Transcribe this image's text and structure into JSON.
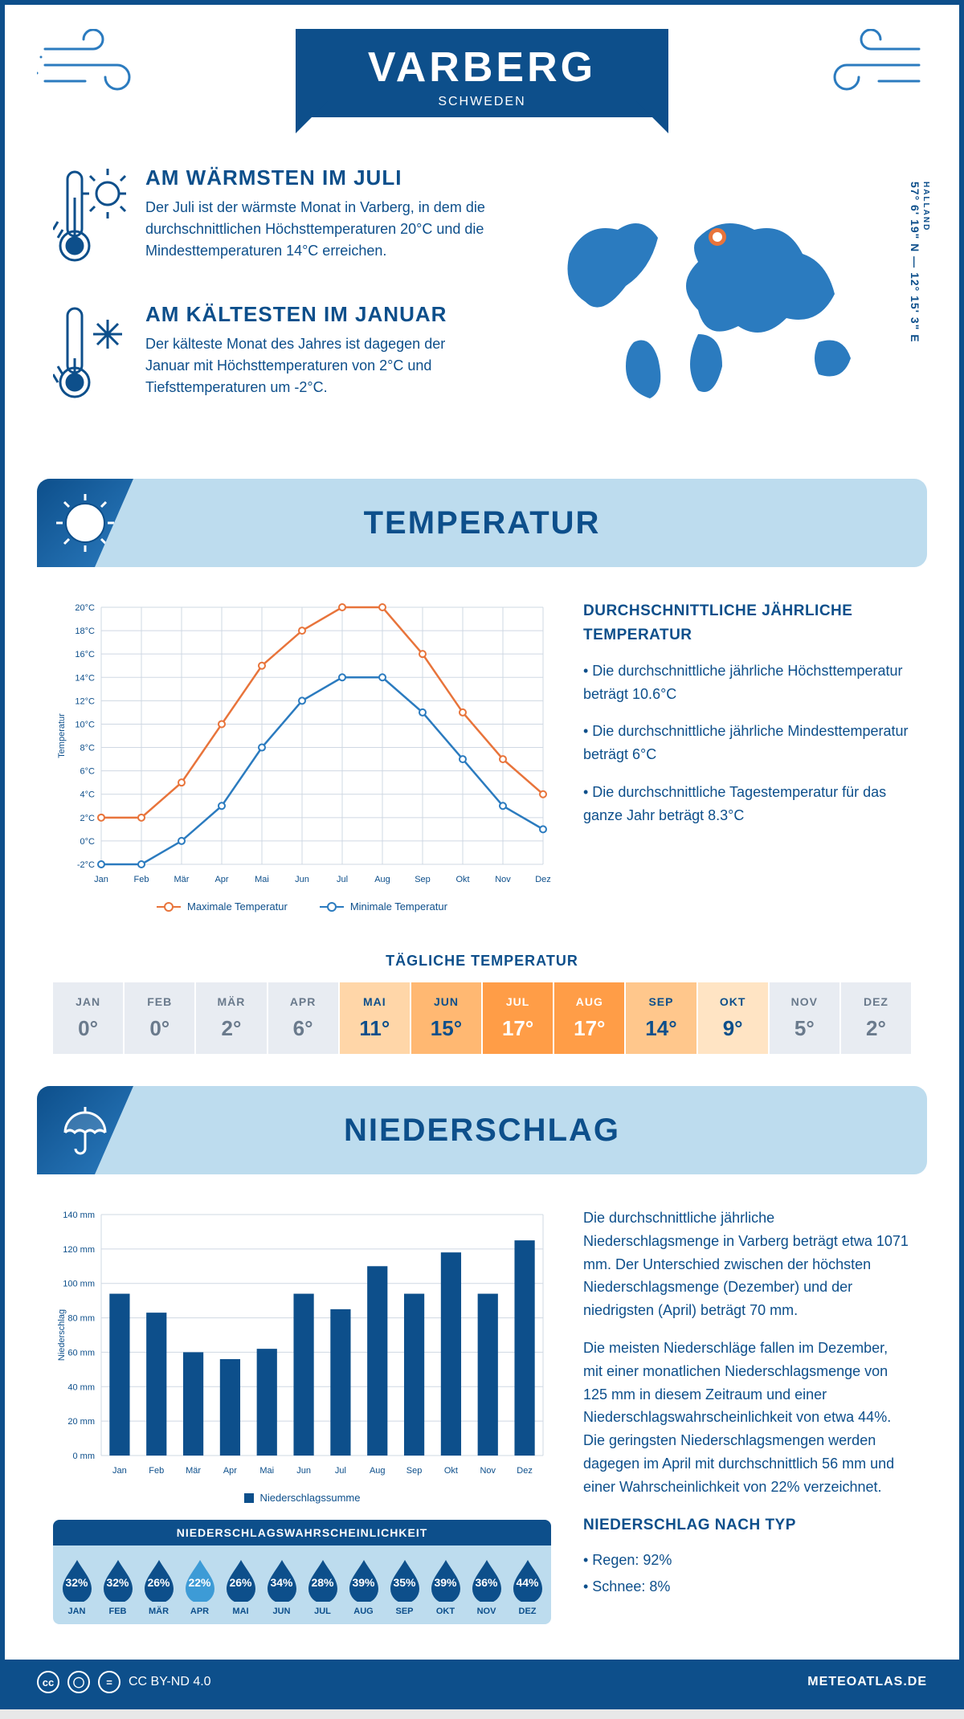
{
  "colors": {
    "blue": "#0d4f8b",
    "blue2": "#2b7bbf",
    "lightblue": "#bddcee",
    "orange": "#e8743b",
    "grid": "#cfd8e3"
  },
  "header": {
    "title": "VARBERG",
    "subtitle": "SCHWEDEN"
  },
  "coords": {
    "region": "HALLAND",
    "lat": "57° 6' 19\" N",
    "lon": "12° 15' 3\" E"
  },
  "warm": {
    "title": "AM WÄRMSTEN IM JULI",
    "text": "Der Juli ist der wärmste Monat in Varberg, in dem die durchschnittlichen Höchsttemperaturen 20°C und die Mindesttemperaturen 14°C erreichen."
  },
  "cold": {
    "title": "AM KÄLTESTEN IM JANUAR",
    "text": "Der kälteste Monat des Jahres ist dagegen der Januar mit Höchsttemperaturen von 2°C und Tiefsttemperaturen um -2°C."
  },
  "temp_section": {
    "title": "TEMPERATUR"
  },
  "temp_chart": {
    "type": "line",
    "months": [
      "Jan",
      "Feb",
      "Mär",
      "Apr",
      "Mai",
      "Jun",
      "Jul",
      "Aug",
      "Sep",
      "Okt",
      "Nov",
      "Dez"
    ],
    "max": [
      2,
      2,
      5,
      10,
      15,
      18,
      20,
      20,
      16,
      11,
      7,
      4
    ],
    "min": [
      -2,
      -2,
      0,
      3,
      8,
      12,
      14,
      14,
      11,
      7,
      3,
      1
    ],
    "ylim": [
      -2,
      20
    ],
    "ytick_step": 2,
    "max_color": "#e8743b",
    "min_color": "#2b7bbf",
    "grid_color": "#cfd8e3",
    "ylabel": "Temperatur",
    "legend_max": "Maximale Temperatur",
    "legend_min": "Minimale Temperatur",
    "label_fontsize": 11
  },
  "temp_text": {
    "title": "DURCHSCHNITTLICHE JÄHRLICHE TEMPERATUR",
    "b1": "• Die durchschnittliche jährliche Höchsttemperatur beträgt 10.6°C",
    "b2": "• Die durchschnittliche jährliche Mindesttemperatur beträgt 6°C",
    "b3": "• Die durchschnittliche Tagestemperatur für das ganze Jahr beträgt 8.3°C"
  },
  "daily": {
    "title": "TÄGLICHE TEMPERATUR",
    "months": [
      "JAN",
      "FEB",
      "MÄR",
      "APR",
      "MAI",
      "JUN",
      "JUL",
      "AUG",
      "SEP",
      "OKT",
      "NOV",
      "DEZ"
    ],
    "values": [
      "0°",
      "0°",
      "2°",
      "6°",
      "11°",
      "15°",
      "17°",
      "17°",
      "14°",
      "9°",
      "5°",
      "2°"
    ],
    "cell_bg": [
      "#e8ecf2",
      "#e8ecf2",
      "#e8ecf2",
      "#e8ecf2",
      "#ffd6a8",
      "#ffb872",
      "#ff9d47",
      "#ff9d47",
      "#ffc78c",
      "#ffe4c4",
      "#e8ecf2",
      "#e8ecf2"
    ],
    "cell_fg": [
      "#6a7a8c",
      "#6a7a8c",
      "#6a7a8c",
      "#6a7a8c",
      "#0d4f8b",
      "#0d4f8b",
      "#ffffff",
      "#ffffff",
      "#0d4f8b",
      "#0d4f8b",
      "#6a7a8c",
      "#6a7a8c"
    ]
  },
  "rain_section": {
    "title": "NIEDERSCHLAG"
  },
  "rain_chart": {
    "type": "bar",
    "months": [
      "Jan",
      "Feb",
      "Mär",
      "Apr",
      "Mai",
      "Jun",
      "Jul",
      "Aug",
      "Sep",
      "Okt",
      "Nov",
      "Dez"
    ],
    "values": [
      94,
      83,
      60,
      56,
      62,
      94,
      85,
      110,
      94,
      118,
      94,
      125
    ],
    "ylim": [
      0,
      140
    ],
    "ytick_step": 20,
    "bar_color": "#0d4f8b",
    "grid_color": "#cfd8e3",
    "ylabel": "Niederschlag",
    "legend": "Niederschlagssumme",
    "bar_width": 0.55
  },
  "rain_text": {
    "p1": "Die durchschnittliche jährliche Niederschlagsmenge in Varberg beträgt etwa 1071 mm. Der Unterschied zwischen der höchsten Niederschlagsmenge (Dezember) und der niedrigsten (April) beträgt 70 mm.",
    "p2": "Die meisten Niederschläge fallen im Dezember, mit einer monatlichen Niederschlagsmenge von 125 mm in diesem Zeitraum und einer Niederschlagswahrscheinlichkeit von etwa 44%. Die geringsten Niederschlagsmengen werden dagegen im April mit durchschnittlich 56 mm und einer Wahrscheinlichkeit von 22% verzeichnet.",
    "type_title": "NIEDERSCHLAG NACH TYP",
    "type_1": "• Regen: 92%",
    "type_2": "• Schnee: 8%"
  },
  "drops": {
    "title": "NIEDERSCHLAGSWAHRSCHEINLICHKEIT",
    "months": [
      "JAN",
      "FEB",
      "MÄR",
      "APR",
      "MAI",
      "JUN",
      "JUL",
      "AUG",
      "SEP",
      "OKT",
      "NOV",
      "DEZ"
    ],
    "pct": [
      "32%",
      "32%",
      "26%",
      "22%",
      "26%",
      "34%",
      "28%",
      "39%",
      "35%",
      "39%",
      "36%",
      "44%"
    ],
    "fill": [
      "#0d4f8b",
      "#0d4f8b",
      "#0d4f8b",
      "#3d9bd6",
      "#0d4f8b",
      "#0d4f8b",
      "#0d4f8b",
      "#0d4f8b",
      "#0d4f8b",
      "#0d4f8b",
      "#0d4f8b",
      "#0d4f8b"
    ]
  },
  "footer": {
    "license": "CC BY-ND 4.0",
    "site": "METEOATLAS.DE"
  }
}
